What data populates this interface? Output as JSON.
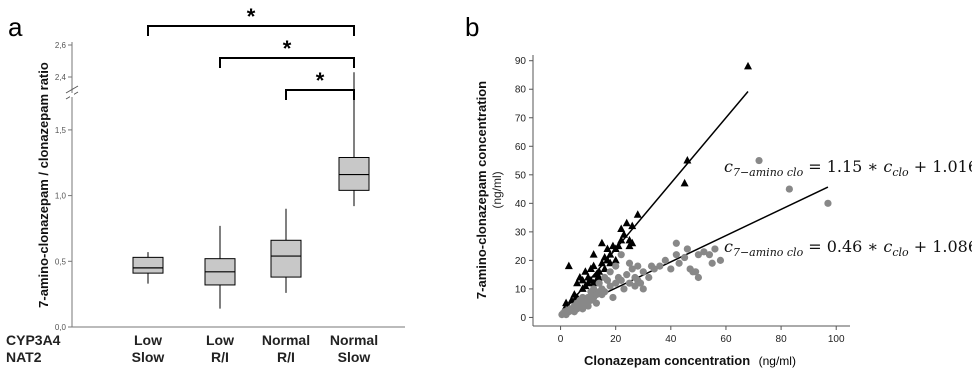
{
  "chart_data": [
    {
      "panel": "a",
      "type": "box",
      "ylabel": "7-amino-clonazepam / clonazepam ratio",
      "yticks_lower": [
        "0,0",
        "0,5",
        "1,0",
        "1,5"
      ],
      "yticks_upper": [
        "2,4",
        "2,6"
      ],
      "ylim": [
        0,
        2.6
      ],
      "axis_break": [
        1.85,
        2.35
      ],
      "row_labels": [
        "CYP3A4",
        "NAT2"
      ],
      "groups": [
        {
          "cyp3a4": "Low",
          "nat2": "Slow",
          "whisker_low": 0.33,
          "q1": 0.41,
          "median": 0.45,
          "q3": 0.53,
          "whisker_high": 0.57
        },
        {
          "cyp3a4": "Low",
          "nat2": "R/I",
          "whisker_low": 0.14,
          "q1": 0.32,
          "median": 0.42,
          "q3": 0.52,
          "whisker_high": 0.77
        },
        {
          "cyp3a4": "Normal",
          "nat2": "R/I",
          "whisker_low": 0.26,
          "q1": 0.38,
          "median": 0.54,
          "q3": 0.66,
          "whisker_high": 0.9
        },
        {
          "cyp3a4": "Normal",
          "nat2": "Slow",
          "whisker_low": 0.92,
          "q1": 1.04,
          "median": 1.16,
          "q3": 1.29,
          "whisker_high": 2.43
        }
      ],
      "significance": [
        {
          "from": 0,
          "to": 3,
          "label": "*"
        },
        {
          "from": 1,
          "to": 3,
          "label": "*"
        },
        {
          "from": 2,
          "to": 3,
          "label": "*"
        }
      ]
    },
    {
      "panel": "b",
      "type": "scatter",
      "xlabel": "Clonazepam concentration",
      "xlabel_unit": "(ng/ml)",
      "ylabel": "7-amino-clonazepam concentration",
      "ylabel_unit": "(ng/ml)",
      "xlim": [
        -10,
        105
      ],
      "ylim": [
        -3,
        92
      ],
      "xticks": [
        0,
        20,
        40,
        60,
        80,
        100
      ],
      "yticks": [
        0,
        10,
        20,
        30,
        40,
        50,
        60,
        70,
        80,
        90
      ],
      "series": [
        {
          "marker": "triangle",
          "color": "#000000",
          "fit": {
            "slope": 1.15,
            "intercept": 1.016,
            "x_range": [
              1,
              68
            ]
          },
          "points": [
            [
              1.5,
              3
            ],
            [
              2,
              5
            ],
            [
              3,
              18
            ],
            [
              4,
              6
            ],
            [
              5,
              8
            ],
            [
              6,
              7
            ],
            [
              6,
              12
            ],
            [
              7,
              14
            ],
            [
              8,
              10
            ],
            [
              8,
              13
            ],
            [
              9,
              11
            ],
            [
              9,
              16
            ],
            [
              10,
              12
            ],
            [
              10,
              14
            ],
            [
              11,
              13
            ],
            [
              11,
              17
            ],
            [
              12,
              12
            ],
            [
              12,
              18
            ],
            [
              12,
              22
            ],
            [
              13,
              13
            ],
            [
              13,
              15
            ],
            [
              14,
              14
            ],
            [
              14,
              16
            ],
            [
              15,
              19
            ],
            [
              15,
              26
            ],
            [
              16,
              17
            ],
            [
              16,
              21
            ],
            [
              17,
              20
            ],
            [
              17,
              24
            ],
            [
              18,
              22
            ],
            [
              18,
              19
            ],
            [
              19,
              25
            ],
            [
              20,
              24
            ],
            [
              20,
              20
            ],
            [
              21,
              25
            ],
            [
              22,
              31
            ],
            [
              22,
              27
            ],
            [
              23,
              29
            ],
            [
              24,
              33
            ],
            [
              25,
              27
            ],
            [
              25,
              25
            ],
            [
              26,
              26
            ],
            [
              26,
              32
            ],
            [
              28,
              36
            ],
            [
              45,
              47
            ],
            [
              46,
              55
            ],
            [
              68,
              88
            ]
          ]
        },
        {
          "marker": "circle",
          "color": "#888888",
          "fit": {
            "slope": 0.46,
            "intercept": 1.086,
            "x_range": [
              0,
              97
            ]
          },
          "points": [
            [
              0.5,
              1
            ],
            [
              1,
              1.5
            ],
            [
              1.5,
              2
            ],
            [
              2,
              1
            ],
            [
              2.5,
              2.5
            ],
            [
              3,
              2
            ],
            [
              3.5,
              3
            ],
            [
              4,
              2.5
            ],
            [
              5,
              4
            ],
            [
              5,
              2
            ],
            [
              6,
              3
            ],
            [
              6,
              5
            ],
            [
              7,
              4
            ],
            [
              7,
              6
            ],
            [
              8,
              3
            ],
            [
              8,
              7
            ],
            [
              9,
              5
            ],
            [
              10,
              4
            ],
            [
              10,
              7
            ],
            [
              11,
              6
            ],
            [
              11,
              9
            ],
            [
              12,
              7
            ],
            [
              12,
              10
            ],
            [
              13,
              5
            ],
            [
              13,
              8
            ],
            [
              14,
              9
            ],
            [
              14,
              12
            ],
            [
              15,
              8
            ],
            [
              15,
              10
            ],
            [
              16,
              9
            ],
            [
              16,
              14
            ],
            [
              17,
              13
            ],
            [
              18,
              11
            ],
            [
              18,
              16
            ],
            [
              19,
              7
            ],
            [
              20,
              12
            ],
            [
              20,
              18
            ],
            [
              21,
              14
            ],
            [
              22,
              13
            ],
            [
              22,
              22
            ],
            [
              23,
              10
            ],
            [
              24,
              15
            ],
            [
              25,
              12
            ],
            [
              25,
              19
            ],
            [
              26,
              17
            ],
            [
              27,
              11
            ],
            [
              27,
              14
            ],
            [
              28,
              13
            ],
            [
              28,
              18
            ],
            [
              29,
              12
            ],
            [
              30,
              10
            ],
            [
              30,
              16
            ],
            [
              32,
              14
            ],
            [
              33,
              18
            ],
            [
              34,
              17
            ],
            [
              36,
              18
            ],
            [
              38,
              20
            ],
            [
              40,
              17
            ],
            [
              42,
              22
            ],
            [
              42,
              26
            ],
            [
              43,
              19
            ],
            [
              45,
              21
            ],
            [
              46,
              24
            ],
            [
              47,
              17
            ],
            [
              48,
              16
            ],
            [
              49,
              16
            ],
            [
              50,
              14
            ],
            [
              50,
              22
            ],
            [
              52,
              23
            ],
            [
              54,
              22
            ],
            [
              55,
              19
            ],
            [
              56,
              24
            ],
            [
              58,
              20
            ],
            [
              72,
              55
            ],
            [
              83,
              45
            ],
            [
              97,
              40
            ]
          ]
        }
      ]
    }
  ],
  "equations": [
    {
      "lhs_var": "c",
      "lhs_sub": "7−amino clo",
      "rhs": "= 1.15 ∗ ",
      "rhs_var": "c",
      "rhs_sub": "clo",
      "rhs_tail": " + 1.016"
    },
    {
      "lhs_var": "c",
      "lhs_sub": "7−amino clo",
      "rhs": "= 0.46 ∗ ",
      "rhs_var": "c",
      "rhs_sub": "clo",
      "rhs_tail": " + 1.086"
    }
  ]
}
